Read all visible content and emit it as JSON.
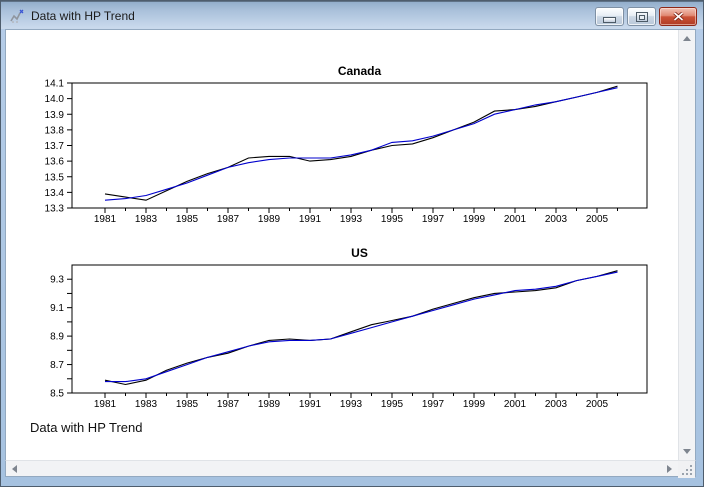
{
  "window": {
    "title": "Data with HP Trend"
  },
  "footer": {
    "caption": "Data with HP Trend"
  },
  "icons": {
    "title_icon": "graph-icon",
    "minimize": "minimize-bar",
    "restore": "restore-box",
    "close": "close-x",
    "scroll_up": "triangle-up",
    "scroll_down": "triangle-down",
    "scroll_left": "triangle-left",
    "scroll_right": "triangle-right",
    "resize_grip": "dotted-triangle"
  },
  "colors": {
    "actual_line": "#000000",
    "trend_line": "#0000cd",
    "titlebar_top": "#93aecb",
    "titlebar_bottom": "#c9d9ec",
    "window_border": "#aec6e4",
    "close_button": "#c4543a",
    "plot_frame": "#000000"
  },
  "chart_data": [
    {
      "type": "line",
      "title": "Canada",
      "x": [
        1981,
        1982,
        1983,
        1984,
        1985,
        1986,
        1987,
        1988,
        1989,
        1990,
        1991,
        1992,
        1993,
        1994,
        1995,
        1996,
        1997,
        1998,
        1999,
        2000,
        2001,
        2002,
        2003,
        2004,
        2005,
        2006
      ],
      "x_labeled": [
        1981,
        1983,
        1985,
        1987,
        1989,
        1991,
        1993,
        1995,
        1997,
        1999,
        2001,
        2003,
        2005
      ],
      "x_tick_labels": [
        "1981",
        "1983",
        "1985",
        "1987",
        "1989",
        "1991",
        "1993",
        "1995",
        "1997",
        "1999",
        "2001",
        "2003",
        "2005"
      ],
      "ylim": [
        13.3,
        14.1
      ],
      "yticks": [
        {
          "v": 13.3,
          "label": "13.3"
        },
        {
          "v": 13.4,
          "label": "13.4"
        },
        {
          "v": 13.5,
          "label": "13.5"
        },
        {
          "v": 13.6,
          "label": "13.6"
        },
        {
          "v": 13.7,
          "label": "13.7"
        },
        {
          "v": 13.8,
          "label": "13.8"
        },
        {
          "v": 13.9,
          "label": "13.9"
        },
        {
          "v": 14.0,
          "label": "14.0"
        },
        {
          "v": 14.1,
          "label": "14.1"
        }
      ],
      "grid": false,
      "legend": "none",
      "series": [
        {
          "name": "actual",
          "color_key": "actual_line",
          "values": [
            13.39,
            13.37,
            13.35,
            13.41,
            13.47,
            13.52,
            13.56,
            13.62,
            13.63,
            13.63,
            13.6,
            13.61,
            13.63,
            13.67,
            13.7,
            13.71,
            13.75,
            13.8,
            13.85,
            13.92,
            13.93,
            13.95,
            13.98,
            14.01,
            14.04,
            14.08
          ]
        },
        {
          "name": "hp_trend",
          "color_key": "trend_line",
          "values": [
            13.35,
            13.36,
            13.38,
            13.42,
            13.46,
            13.51,
            13.56,
            13.59,
            13.61,
            13.62,
            13.62,
            13.62,
            13.64,
            13.67,
            13.72,
            13.73,
            13.76,
            13.8,
            13.84,
            13.9,
            13.93,
            13.96,
            13.98,
            14.01,
            14.04,
            14.07
          ]
        }
      ]
    },
    {
      "type": "line",
      "title": "US",
      "x": [
        1981,
        1982,
        1983,
        1984,
        1985,
        1986,
        1987,
        1988,
        1989,
        1990,
        1991,
        1992,
        1993,
        1994,
        1995,
        1996,
        1997,
        1998,
        1999,
        2000,
        2001,
        2002,
        2003,
        2004,
        2005,
        2006
      ],
      "x_labeled": [
        1981,
        1983,
        1985,
        1987,
        1989,
        1991,
        1993,
        1995,
        1997,
        1999,
        2001,
        2003,
        2005
      ],
      "x_tick_labels": [
        "1981",
        "1983",
        "1985",
        "1987",
        "1989",
        "1991",
        "1993",
        "1995",
        "1997",
        "1999",
        "2001",
        "2003",
        "2005"
      ],
      "ylim": [
        8.5,
        9.4
      ],
      "yticks": [
        {
          "v": 8.5,
          "label": "8.5"
        },
        {
          "v": 8.6,
          "label": ""
        },
        {
          "v": 8.7,
          "label": "8.7"
        },
        {
          "v": 8.8,
          "label": ""
        },
        {
          "v": 8.9,
          "label": "8.9"
        },
        {
          "v": 9.0,
          "label": ""
        },
        {
          "v": 9.1,
          "label": "9.1"
        },
        {
          "v": 9.2,
          "label": ""
        },
        {
          "v": 9.3,
          "label": "9.3"
        }
      ],
      "grid": false,
      "legend": "none",
      "series": [
        {
          "name": "actual",
          "color_key": "actual_line",
          "values": [
            8.59,
            8.56,
            8.59,
            8.66,
            8.71,
            8.75,
            8.78,
            8.83,
            8.87,
            8.88,
            8.87,
            8.88,
            8.93,
            8.98,
            9.01,
            9.04,
            9.09,
            9.13,
            9.17,
            9.2,
            9.21,
            9.22,
            9.24,
            9.29,
            9.32,
            9.36
          ]
        },
        {
          "name": "hp_trend",
          "color_key": "trend_line",
          "values": [
            8.58,
            8.58,
            8.6,
            8.65,
            8.7,
            8.75,
            8.79,
            8.83,
            8.86,
            8.87,
            8.87,
            8.88,
            8.92,
            8.96,
            9.0,
            9.04,
            9.08,
            9.12,
            9.16,
            9.19,
            9.22,
            9.23,
            9.25,
            9.29,
            9.32,
            9.35
          ]
        }
      ]
    }
  ]
}
